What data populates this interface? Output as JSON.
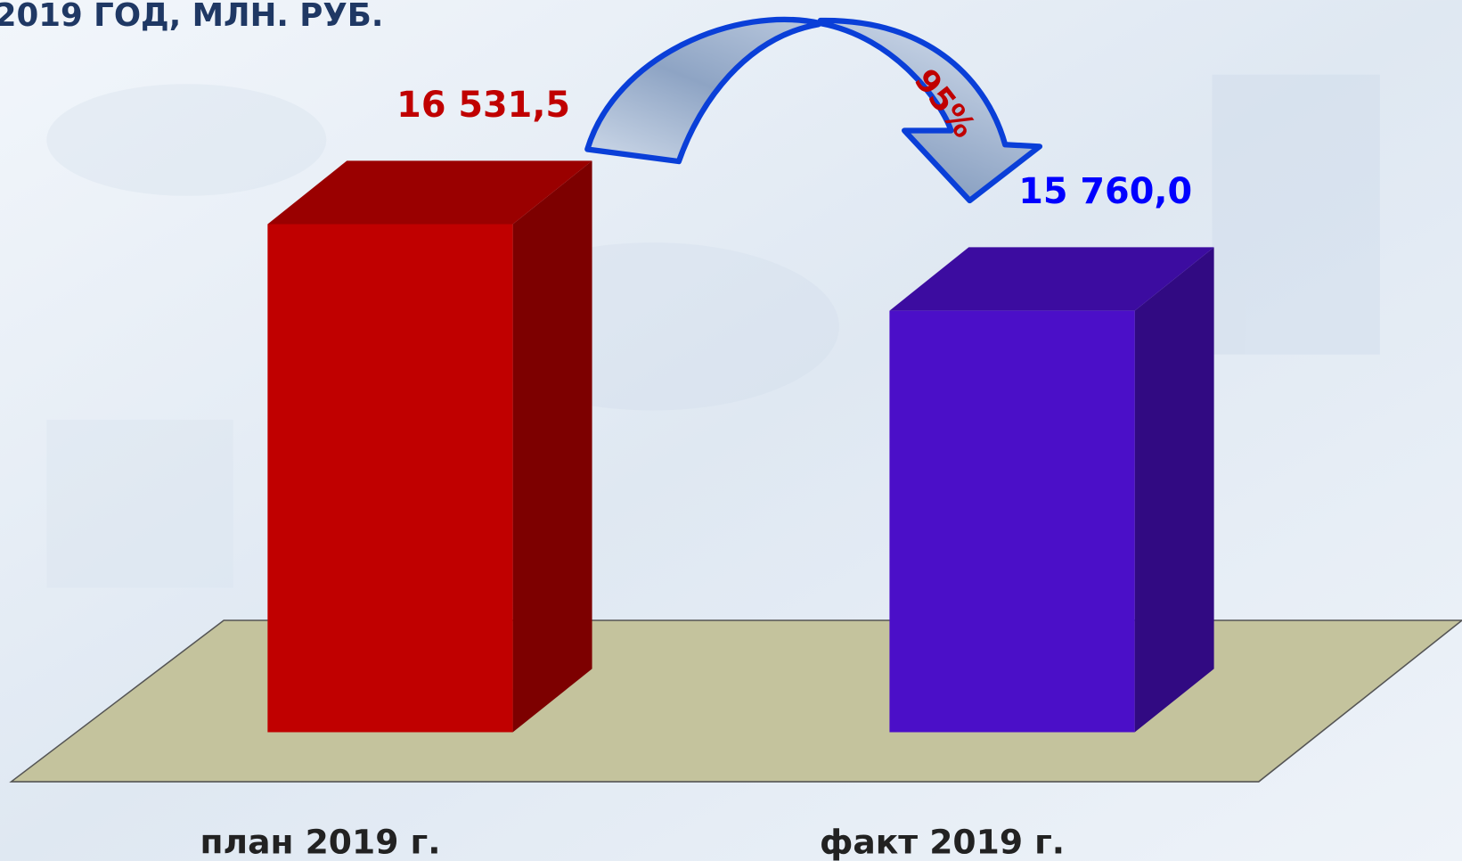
{
  "chart_data": {
    "type": "bar3d",
    "title": "2019 ГОД, МЛН. РУБ.",
    "categories": [
      "план 2019 г.",
      "факт  2019 г."
    ],
    "values": [
      16531.5,
      15760.0
    ],
    "value_labels": [
      "16 531,5",
      "15 760,0"
    ],
    "colors": [
      "#c00000",
      "#4b0fc8"
    ],
    "label_colors": [
      "#c00000",
      "#0000ff"
    ],
    "annotation": "95%",
    "ylim": [
      12000,
      17000
    ]
  }
}
